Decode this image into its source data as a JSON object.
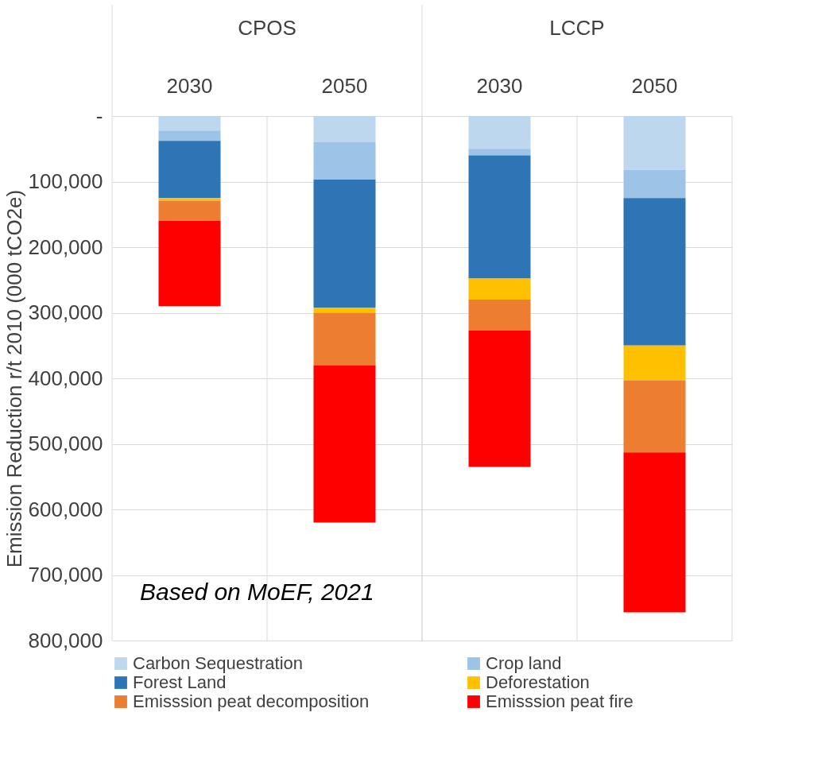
{
  "chart_data": {
    "type": "bar",
    "stacked": true,
    "ylabel": "Emission Reduction r/t 2010 (000 tCO2e)",
    "categories": [
      "2030",
      "2050",
      "2030",
      "2050"
    ],
    "series": [
      {
        "name": "Carbon Sequestration",
        "color": "#bdd7ee",
        "values": [
          22000,
          40000,
          50000,
          82000
        ]
      },
      {
        "name": "Crop land",
        "color": "#9dc3e6",
        "values": [
          16000,
          57000,
          10000,
          43000
        ]
      },
      {
        "name": "Forest Land",
        "color": "#2e75b6",
        "values": [
          87000,
          195000,
          188000,
          225000
        ]
      },
      {
        "name": "Deforestation",
        "color": "#ffc000",
        "values": [
          4000,
          8000,
          32000,
          53000
        ]
      },
      {
        "name": "Emisssion peat decomposition",
        "color": "#ed7d31",
        "values": [
          31000,
          80000,
          47000,
          110000
        ]
      },
      {
        "name": "Emisssion peat fire",
        "color": "#ff0000",
        "values": [
          130000,
          240000,
          208000,
          244000
        ]
      }
    ],
    "ylim": [
      800000,
      0
    ],
    "yticks": [
      {
        "value": 0,
        "label": "-"
      },
      {
        "value": 100000,
        "label": "100,000"
      },
      {
        "value": 200000,
        "label": "200,000"
      },
      {
        "value": 300000,
        "label": "300,000"
      },
      {
        "value": 400000,
        "label": "400,000"
      },
      {
        "value": 500000,
        "label": "500,000"
      },
      {
        "value": 600000,
        "label": "600,000"
      },
      {
        "value": 700000,
        "label": "700,000"
      },
      {
        "value": 800000,
        "label": "800,000"
      }
    ],
    "annotations": [
      "CPOS",
      "LCCP",
      "Based on MoEF, 2021"
    ],
    "grid": true,
    "legend": "bottom"
  }
}
